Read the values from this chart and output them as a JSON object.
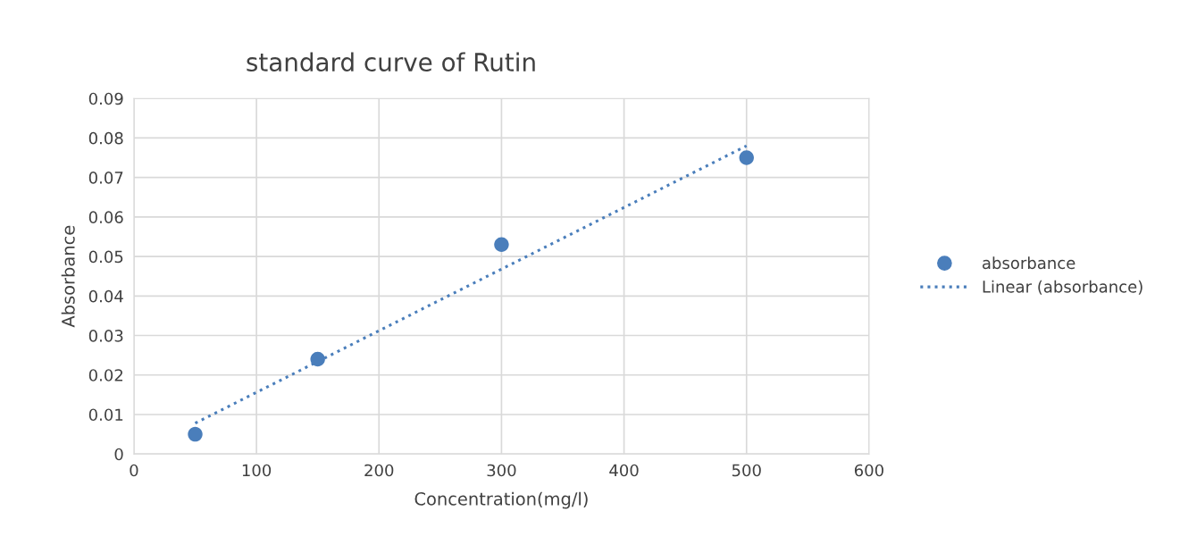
{
  "chart_data": {
    "type": "scatter",
    "title": "standard curve of Rutin",
    "xlabel": "Concentration(mg/l)",
    "ylabel": "Absorbance",
    "series": [
      {
        "name": "absorbance",
        "color": "#4a7ebb",
        "marker": "circle",
        "x": [
          50,
          150,
          300,
          500
        ],
        "values": [
          0.005,
          0.024,
          0.053,
          0.075
        ]
      },
      {
        "name": "Linear (absorbance)",
        "type": "line",
        "color": "#4a7ebb",
        "line_style": "dotted",
        "marker": "none",
        "x": [
          50,
          500
        ],
        "values": [
          0.0078,
          0.078
        ]
      }
    ],
    "xlim": [
      0,
      600
    ],
    "xticks": [
      0,
      100,
      200,
      300,
      400,
      500,
      600
    ],
    "ylim": [
      0,
      0.09
    ],
    "yticks": [
      {
        "value": 0,
        "label": "0"
      },
      0.01,
      0.02,
      0.03,
      0.04,
      0.05,
      0.06,
      0.07,
      0.08,
      0.09
    ],
    "grid": true,
    "legend": "right"
  }
}
